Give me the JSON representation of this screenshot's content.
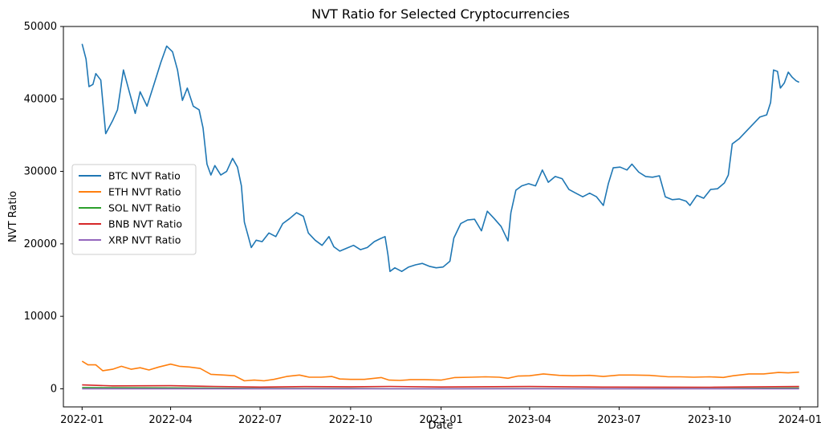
{
  "chart_data": {
    "type": "line",
    "title": "NVT Ratio for Selected Cryptocurrencies",
    "xlabel": "Date",
    "ylabel": "NVT Ratio",
    "xlim": [
      "2021-12-13",
      "2024-01-19"
    ],
    "ylim": [
      -2500,
      50000
    ],
    "x_ticks": [
      "2022-01",
      "2022-04",
      "2022-07",
      "2022-10",
      "2023-01",
      "2023-04",
      "2023-07",
      "2023-10",
      "2024-01"
    ],
    "y_ticks": [
      0,
      10000,
      20000,
      30000,
      40000,
      50000
    ],
    "grid": false,
    "legend_position": "center-left",
    "series": [
      {
        "name": "BTC NVT Ratio",
        "color": "#1f77b4",
        "points": [
          [
            "2022-01-01",
            47600
          ],
          [
            "2022-01-05",
            45500
          ],
          [
            "2022-01-08",
            41700
          ],
          [
            "2022-01-12",
            42000
          ],
          [
            "2022-01-15",
            43500
          ],
          [
            "2022-01-20",
            42600
          ],
          [
            "2022-01-25",
            35200
          ],
          [
            "2022-02-01",
            37000
          ],
          [
            "2022-02-06",
            38500
          ],
          [
            "2022-02-12",
            44000
          ],
          [
            "2022-02-18",
            41000
          ],
          [
            "2022-02-24",
            38000
          ],
          [
            "2022-03-01",
            41000
          ],
          [
            "2022-03-08",
            39000
          ],
          [
            "2022-03-15",
            42000
          ],
          [
            "2022-03-22",
            45000
          ],
          [
            "2022-03-28",
            47300
          ],
          [
            "2022-04-03",
            46500
          ],
          [
            "2022-04-08",
            44000
          ],
          [
            "2022-04-13",
            39800
          ],
          [
            "2022-04-18",
            41500
          ],
          [
            "2022-04-24",
            39000
          ],
          [
            "2022-04-30",
            38500
          ],
          [
            "2022-05-04",
            36000
          ],
          [
            "2022-05-08",
            31000
          ],
          [
            "2022-05-12",
            29500
          ],
          [
            "2022-05-16",
            30800
          ],
          [
            "2022-05-22",
            29500
          ],
          [
            "2022-05-28",
            30000
          ],
          [
            "2022-06-03",
            31800
          ],
          [
            "2022-06-08",
            30600
          ],
          [
            "2022-06-12",
            28000
          ],
          [
            "2022-06-15",
            23000
          ],
          [
            "2022-06-18",
            21500
          ],
          [
            "2022-06-22",
            19500
          ],
          [
            "2022-06-27",
            20500
          ],
          [
            "2022-07-03",
            20300
          ],
          [
            "2022-07-10",
            21500
          ],
          [
            "2022-07-17",
            21000
          ],
          [
            "2022-07-24",
            22800
          ],
          [
            "2022-07-31",
            23500
          ],
          [
            "2022-08-07",
            24300
          ],
          [
            "2022-08-14",
            23800
          ],
          [
            "2022-08-19",
            21500
          ],
          [
            "2022-08-26",
            20500
          ],
          [
            "2022-09-02",
            19800
          ],
          [
            "2022-09-09",
            21000
          ],
          [
            "2022-09-14",
            19600
          ],
          [
            "2022-09-20",
            19000
          ],
          [
            "2022-09-27",
            19400
          ],
          [
            "2022-10-04",
            19800
          ],
          [
            "2022-10-11",
            19200
          ],
          [
            "2022-10-18",
            19500
          ],
          [
            "2022-10-25",
            20300
          ],
          [
            "2022-10-31",
            20700
          ],
          [
            "2022-11-05",
            21000
          ],
          [
            "2022-11-08",
            18500
          ],
          [
            "2022-11-10",
            16200
          ],
          [
            "2022-11-15",
            16700
          ],
          [
            "2022-11-22",
            16200
          ],
          [
            "2022-11-29",
            16800
          ],
          [
            "2022-12-06",
            17100
          ],
          [
            "2022-12-13",
            17300
          ],
          [
            "2022-12-20",
            16900
          ],
          [
            "2022-12-27",
            16700
          ],
          [
            "2023-01-03",
            16800
          ],
          [
            "2023-01-10",
            17600
          ],
          [
            "2023-01-14",
            20800
          ],
          [
            "2023-01-21",
            22800
          ],
          [
            "2023-01-28",
            23300
          ],
          [
            "2023-02-04",
            23400
          ],
          [
            "2023-02-11",
            21800
          ],
          [
            "2023-02-17",
            24500
          ],
          [
            "2023-02-24",
            23500
          ],
          [
            "2023-03-03",
            22400
          ],
          [
            "2023-03-10",
            20400
          ],
          [
            "2023-03-13",
            24300
          ],
          [
            "2023-03-18",
            27400
          ],
          [
            "2023-03-24",
            28000
          ],
          [
            "2023-03-31",
            28300
          ],
          [
            "2023-04-07",
            28000
          ],
          [
            "2023-04-14",
            30200
          ],
          [
            "2023-04-20",
            28500
          ],
          [
            "2023-04-27",
            29300
          ],
          [
            "2023-05-04",
            29000
          ],
          [
            "2023-05-11",
            27500
          ],
          [
            "2023-05-18",
            27000
          ],
          [
            "2023-05-25",
            26500
          ],
          [
            "2023-06-01",
            27000
          ],
          [
            "2023-06-08",
            26500
          ],
          [
            "2023-06-15",
            25300
          ],
          [
            "2023-06-20",
            28300
          ],
          [
            "2023-06-25",
            30500
          ],
          [
            "2023-07-02",
            30600
          ],
          [
            "2023-07-09",
            30200
          ],
          [
            "2023-07-14",
            31000
          ],
          [
            "2023-07-21",
            29900
          ],
          [
            "2023-07-28",
            29300
          ],
          [
            "2023-08-04",
            29200
          ],
          [
            "2023-08-11",
            29400
          ],
          [
            "2023-08-17",
            26500
          ],
          [
            "2023-08-24",
            26100
          ],
          [
            "2023-08-31",
            26200
          ],
          [
            "2023-09-07",
            25900
          ],
          [
            "2023-09-11",
            25300
          ],
          [
            "2023-09-18",
            26700
          ],
          [
            "2023-09-25",
            26300
          ],
          [
            "2023-10-02",
            27500
          ],
          [
            "2023-10-09",
            27600
          ],
          [
            "2023-10-16",
            28400
          ],
          [
            "2023-10-20",
            29500
          ],
          [
            "2023-10-24",
            33800
          ],
          [
            "2023-10-31",
            34500
          ],
          [
            "2023-11-07",
            35500
          ],
          [
            "2023-11-14",
            36500
          ],
          [
            "2023-11-21",
            37500
          ],
          [
            "2023-11-28",
            37800
          ],
          [
            "2023-12-02",
            39500
          ],
          [
            "2023-12-05",
            44000
          ],
          [
            "2023-12-09",
            43800
          ],
          [
            "2023-12-12",
            41500
          ],
          [
            "2023-12-16",
            42200
          ],
          [
            "2023-12-20",
            43700
          ],
          [
            "2023-12-24",
            43000
          ],
          [
            "2023-12-28",
            42500
          ],
          [
            "2023-12-31",
            42300
          ]
        ]
      },
      {
        "name": "ETH NVT Ratio",
        "color": "#ff7f0e",
        "points": [
          [
            "2022-01-01",
            3800
          ],
          [
            "2022-01-07",
            3300
          ],
          [
            "2022-01-15",
            3300
          ],
          [
            "2022-01-22",
            2500
          ],
          [
            "2022-02-01",
            2700
          ],
          [
            "2022-02-10",
            3100
          ],
          [
            "2022-02-20",
            2700
          ],
          [
            "2022-03-01",
            2900
          ],
          [
            "2022-03-10",
            2600
          ],
          [
            "2022-03-20",
            3000
          ],
          [
            "2022-04-01",
            3400
          ],
          [
            "2022-04-10",
            3100
          ],
          [
            "2022-04-20",
            3000
          ],
          [
            "2022-05-01",
            2800
          ],
          [
            "2022-05-12",
            2000
          ],
          [
            "2022-05-25",
            1900
          ],
          [
            "2022-06-05",
            1800
          ],
          [
            "2022-06-15",
            1100
          ],
          [
            "2022-06-25",
            1200
          ],
          [
            "2022-07-05",
            1100
          ],
          [
            "2022-07-15",
            1300
          ],
          [
            "2022-07-28",
            1700
          ],
          [
            "2022-08-10",
            1900
          ],
          [
            "2022-08-20",
            1600
          ],
          [
            "2022-09-01",
            1600
          ],
          [
            "2022-09-12",
            1700
          ],
          [
            "2022-09-20",
            1350
          ],
          [
            "2022-10-01",
            1300
          ],
          [
            "2022-10-15",
            1300
          ],
          [
            "2022-11-01",
            1550
          ],
          [
            "2022-11-09",
            1200
          ],
          [
            "2022-11-20",
            1150
          ],
          [
            "2022-12-01",
            1250
          ],
          [
            "2022-12-15",
            1250
          ],
          [
            "2023-01-01",
            1200
          ],
          [
            "2023-01-15",
            1550
          ],
          [
            "2023-02-01",
            1600
          ],
          [
            "2023-02-15",
            1650
          ],
          [
            "2023-03-01",
            1600
          ],
          [
            "2023-03-10",
            1450
          ],
          [
            "2023-03-20",
            1750
          ],
          [
            "2023-04-01",
            1800
          ],
          [
            "2023-04-15",
            2050
          ],
          [
            "2023-05-01",
            1850
          ],
          [
            "2023-05-15",
            1800
          ],
          [
            "2023-06-01",
            1850
          ],
          [
            "2023-06-15",
            1700
          ],
          [
            "2023-07-01",
            1900
          ],
          [
            "2023-07-15",
            1900
          ],
          [
            "2023-08-01",
            1850
          ],
          [
            "2023-08-20",
            1650
          ],
          [
            "2023-09-01",
            1650
          ],
          [
            "2023-09-15",
            1600
          ],
          [
            "2023-10-01",
            1650
          ],
          [
            "2023-10-15",
            1560
          ],
          [
            "2023-10-25",
            1800
          ],
          [
            "2023-11-10",
            2050
          ],
          [
            "2023-11-25",
            2050
          ],
          [
            "2023-12-10",
            2250
          ],
          [
            "2023-12-20",
            2200
          ],
          [
            "2023-12-31",
            2300
          ]
        ]
      },
      {
        "name": "SOL NVT Ratio",
        "color": "#2ca02c",
        "points": [
          [
            "2022-01-01",
            170
          ],
          [
            "2022-04-01",
            120
          ],
          [
            "2022-07-01",
            40
          ],
          [
            "2022-10-01",
            33
          ],
          [
            "2022-11-10",
            15
          ],
          [
            "2023-01-01",
            10
          ],
          [
            "2023-04-01",
            22
          ],
          [
            "2023-07-01",
            18
          ],
          [
            "2023-10-01",
            22
          ],
          [
            "2023-12-31",
            100
          ]
        ]
      },
      {
        "name": "BNB NVT Ratio",
        "color": "#d62728",
        "points": [
          [
            "2022-01-01",
            530
          ],
          [
            "2022-02-01",
            400
          ],
          [
            "2022-04-01",
            420
          ],
          [
            "2022-05-15",
            320
          ],
          [
            "2022-07-01",
            240
          ],
          [
            "2022-08-15",
            300
          ],
          [
            "2022-10-01",
            280
          ],
          [
            "2022-11-10",
            320
          ],
          [
            "2023-01-01",
            250
          ],
          [
            "2023-04-01",
            310
          ],
          [
            "2023-06-15",
            240
          ],
          [
            "2023-08-15",
            230
          ],
          [
            "2023-10-01",
            210
          ],
          [
            "2023-12-31",
            310
          ]
        ]
      },
      {
        "name": "XRP NVT Ratio",
        "color": "#9467bd",
        "points": [
          [
            "2022-01-01",
            0.83
          ],
          [
            "2022-06-01",
            0.4
          ],
          [
            "2023-01-01",
            0.35
          ],
          [
            "2023-07-15",
            0.8
          ],
          [
            "2023-12-31",
            0.6
          ]
        ]
      }
    ]
  }
}
